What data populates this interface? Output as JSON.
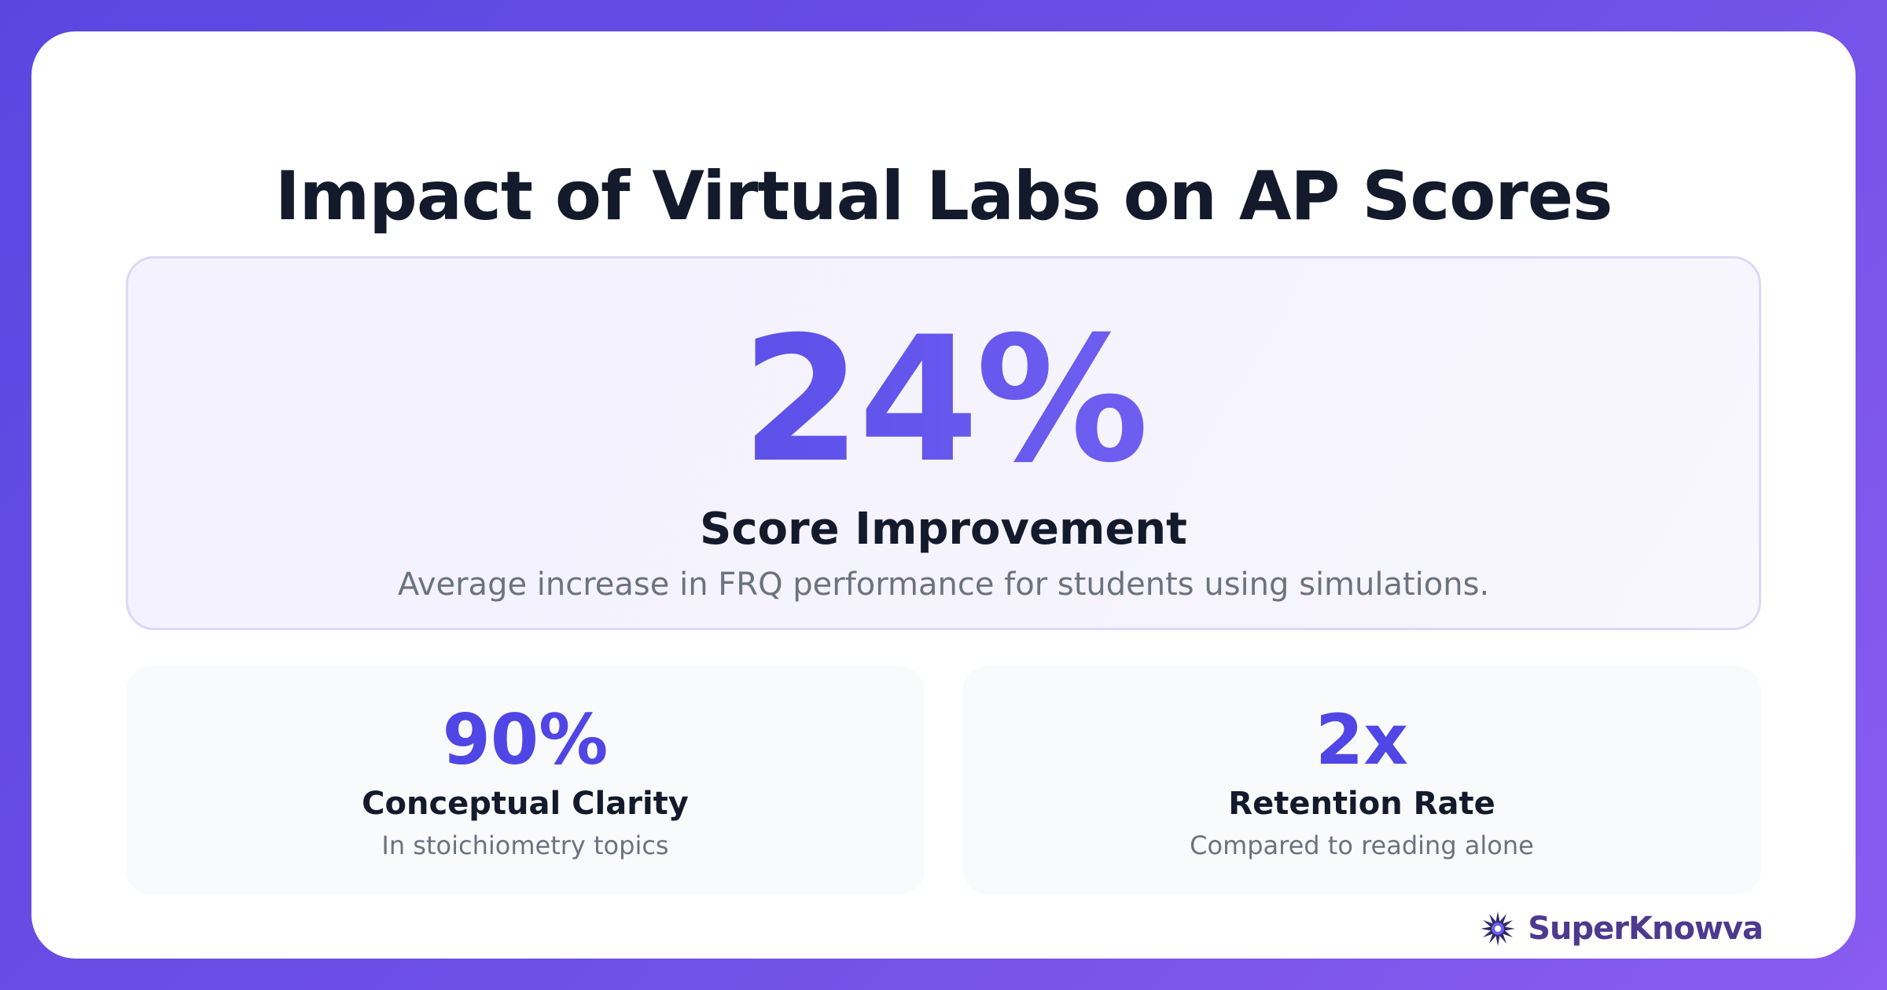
{
  "title": "Impact of Virtual Labs on AP Scores",
  "hero": {
    "value": "24%",
    "label": "Score Improvement",
    "description": "Average increase in FRQ performance for students using simulations."
  },
  "stats": [
    {
      "value": "90%",
      "label": "Conceptual Clarity",
      "description": "In stoichiometry topics"
    },
    {
      "value": "2x",
      "label": "Retention Rate",
      "description": "Compared to reading alone"
    }
  ],
  "brand": {
    "name": "SuperKnowva",
    "icon": "starburst-logo-icon"
  },
  "colors": {
    "accent": "#4f46e5",
    "background_gradient_start": "#5b47e0",
    "background_gradient_end": "#8a5cf0",
    "title_text": "#131a2c",
    "muted_text": "#6b7280"
  }
}
